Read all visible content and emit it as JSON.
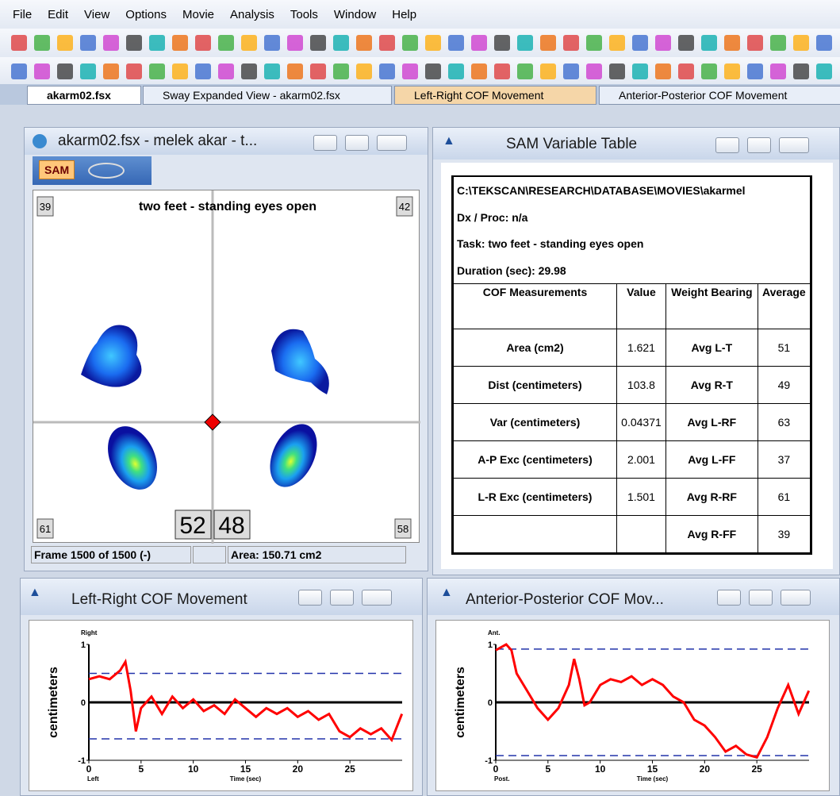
{
  "menu": [
    "File",
    "Edit",
    "View",
    "Options",
    "Movie",
    "Analysis",
    "Tools",
    "Window",
    "Help"
  ],
  "tabs": [
    "akarm02.fsx",
    "Sway Expanded View - akarm02.fsx",
    "Left-Right COF Movement",
    "Anterior-Posterior COF Movement"
  ],
  "pressure_view": {
    "title": "akarm02.fsx - melek  akar - t...",
    "tool": "SAM",
    "caption": "two feet - standing eyes open",
    "corners": {
      "top_left": "39",
      "top_right": "42",
      "bottom_left": "61",
      "bottom_right": "58"
    },
    "totals": [
      "52",
      "48"
    ],
    "status": {
      "frame": "Frame 1500 of 1500 (-)",
      "area": "Area: 150.71 cm2"
    }
  },
  "sam_table": {
    "title": "SAM Variable Table",
    "info": [
      "C:\\TEKSCAN\\RESEARCH\\DATABASE\\MOVIES\\akarmel",
      "Dx / Proc: n/a",
      "Task: two feet - standing eyes open",
      "Duration (sec): 29.98"
    ],
    "headers": [
      "COF Measurements",
      "Value",
      "Weight Bearing",
      "Average"
    ],
    "rows": [
      [
        "Area (cm2)",
        1.621,
        "Avg L-T",
        51
      ],
      [
        "Dist (centimeters)",
        103.8,
        "Avg R-T",
        49
      ],
      [
        "Var (centimeters)",
        0.04371,
        "Avg L-RF",
        63
      ],
      [
        "A-P Exc (centimeters)",
        2.001,
        "Avg L-FF",
        37
      ],
      [
        "L-R Exc (centimeters)",
        1.501,
        "Avg R-RF",
        61
      ],
      [
        null,
        null,
        "Avg R-FF",
        39
      ]
    ]
  },
  "charts": [
    {
      "type": "line",
      "title": "Left-Right COF Movement",
      "ylabel": "centimeters",
      "xlabel": "Time (sec)",
      "top_label": "Right",
      "bottom_label": "Left",
      "color": "#ff0000",
      "x": [
        0,
        1,
        2,
        3,
        3.5,
        4,
        4.5,
        5,
        6,
        7,
        8,
        9,
        10,
        11,
        12,
        13,
        14,
        15,
        16,
        17,
        18,
        19,
        20,
        21,
        22,
        23,
        24,
        25,
        26,
        27,
        28,
        29,
        29.98
      ],
      "y": [
        0.4,
        0.45,
        0.4,
        0.55,
        0.7,
        0.2,
        -0.5,
        -0.1,
        0.1,
        -0.2,
        0.1,
        -0.1,
        0.05,
        -0.15,
        -0.05,
        -0.2,
        0.05,
        -0.1,
        -0.25,
        -0.1,
        -0.2,
        -0.1,
        -0.25,
        -0.15,
        -0.3,
        -0.2,
        -0.5,
        -0.6,
        -0.45,
        -0.55,
        -0.45,
        -0.65,
        -0.2
      ],
      "limits": [
        0.5,
        -0.63
      ],
      "xlim": [
        0,
        30
      ],
      "ylim": [
        -1,
        1
      ],
      "xticks": [
        0,
        5,
        10,
        15,
        20,
        25
      ],
      "yticks": [
        -1,
        0,
        1
      ]
    },
    {
      "type": "line",
      "title": "Anterior-Posterior COF Mov...",
      "ylabel": "centimeters",
      "xlabel": "Time (sec)",
      "top_label": "Ant.",
      "bottom_label": "Post.",
      "color": "#ff0000",
      "x": [
        0,
        1,
        1.5,
        2,
        3,
        4,
        5,
        6,
        7,
        7.5,
        8,
        8.5,
        9,
        10,
        11,
        12,
        13,
        14,
        15,
        16,
        17,
        18,
        19,
        20,
        21,
        22,
        23,
        24,
        25,
        26,
        27,
        28,
        29,
        29.98
      ],
      "y": [
        0.9,
        1.0,
        0.9,
        0.5,
        0.2,
        -0.1,
        -0.3,
        -0.1,
        0.3,
        0.75,
        0.4,
        -0.05,
        0.0,
        0.3,
        0.4,
        0.35,
        0.45,
        0.3,
        0.4,
        0.3,
        0.1,
        0.0,
        -0.3,
        -0.4,
        -0.6,
        -0.85,
        -0.75,
        -0.9,
        -0.95,
        -0.6,
        -0.1,
        0.3,
        -0.2,
        0.2
      ],
      "limits": [
        0.92,
        -0.92
      ],
      "xlim": [
        0,
        30
      ],
      "ylim": [
        -1,
        1
      ],
      "xticks": [
        0,
        5,
        10,
        15,
        20,
        25
      ],
      "yticks": [
        -1,
        0,
        1
      ]
    }
  ]
}
